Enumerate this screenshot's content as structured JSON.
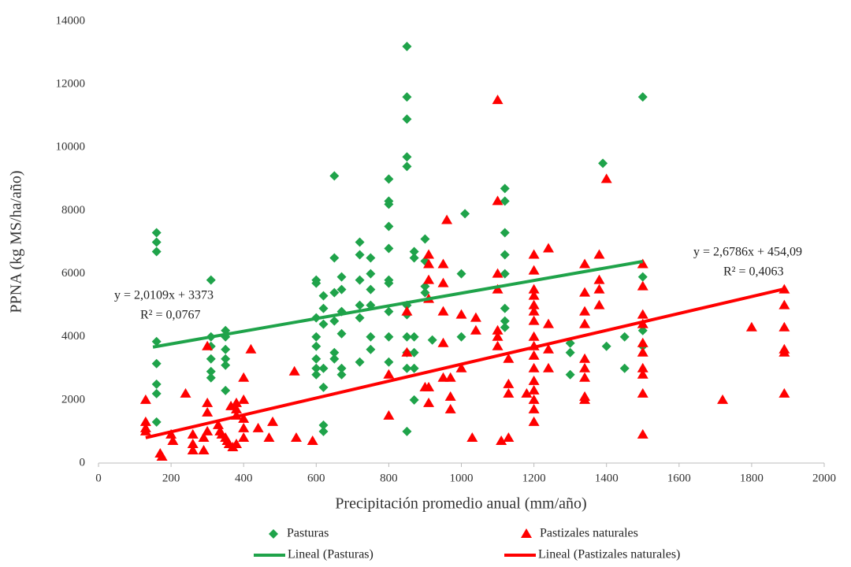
{
  "chart_data": {
    "type": "scatter",
    "x_label": "Precipitación promedio anual (mm/año)",
    "y_label": "PPNA  (kg MS/ha/año)",
    "xlim": [
      0,
      2000
    ],
    "xticks": [
      0,
      200,
      400,
      600,
      800,
      1000,
      1200,
      1400,
      1600,
      1800,
      2000
    ],
    "ylim": [
      0,
      14000
    ],
    "yticks": [
      0,
      2000,
      4000,
      6000,
      8000,
      10000,
      12000,
      14000
    ],
    "legend": "bottom",
    "series": [
      {
        "name": "Pasturas",
        "color": "#1fa34a",
        "marker": "diamond",
        "x": [
          160,
          160,
          160,
          160,
          160,
          160,
          160,
          160,
          310,
          310,
          310,
          310,
          310,
          310,
          350,
          350,
          350,
          350,
          350,
          350,
          600,
          600,
          600,
          600,
          600,
          600,
          600,
          600,
          620,
          620,
          620,
          620,
          620,
          620,
          620,
          650,
          650,
          650,
          650,
          650,
          650,
          670,
          670,
          670,
          670,
          670,
          670,
          720,
          720,
          720,
          720,
          720,
          720,
          750,
          750,
          750,
          750,
          750,
          750,
          800,
          800,
          800,
          800,
          800,
          800,
          800,
          800,
          800,
          800,
          850,
          850,
          850,
          850,
          850,
          850,
          850,
          850,
          850,
          850,
          850,
          870,
          870,
          870,
          870,
          870,
          870,
          900,
          900,
          900,
          900,
          920,
          1000,
          1000,
          1010,
          1120,
          1120,
          1120,
          1120,
          1120,
          1120,
          1120,
          1120,
          1300,
          1300,
          1300,
          1390,
          1400,
          1450,
          1450,
          1500,
          1500,
          1500,
          1500
        ],
        "values": [
          7300,
          7000,
          6700,
          3850,
          3150,
          2500,
          2200,
          1300,
          5800,
          4000,
          3700,
          3300,
          2900,
          2700,
          4200,
          4000,
          3600,
          3300,
          3100,
          2300,
          5800,
          5700,
          4600,
          4000,
          3700,
          3300,
          3000,
          2800,
          5300,
          4900,
          4400,
          3000,
          2400,
          1200,
          1000,
          9100,
          6500,
          5400,
          4500,
          3500,
          3300,
          5900,
          5500,
          4800,
          4100,
          3000,
          2800,
          7000,
          6600,
          5800,
          5000,
          4600,
          3200,
          6500,
          6000,
          5500,
          5000,
          4000,
          3600,
          9000,
          8300,
          8200,
          7500,
          6800,
          5800,
          5700,
          4800,
          4000,
          3200,
          13200,
          11600,
          10900,
          9700,
          9400,
          5000,
          4700,
          4000,
          3500,
          3000,
          1000,
          6700,
          6500,
          4000,
          3500,
          3000,
          2000,
          7100,
          6400,
          5600,
          5400,
          3900,
          6000,
          4000,
          7900,
          8700,
          8300,
          7300,
          6600,
          6000,
          4900,
          4500,
          4300,
          3800,
          3500,
          2800,
          9500,
          3700,
          4000,
          3000,
          11600,
          5900,
          4200,
          3700
        ]
      },
      {
        "name": "Pastizales naturales",
        "color": "#ff0000",
        "marker": "triangle",
        "x": [
          130,
          130,
          130,
          130,
          170,
          175,
          200,
          205,
          240,
          260,
          260,
          260,
          290,
          290,
          300,
          300,
          300,
          300,
          330,
          335,
          340,
          350,
          355,
          360,
          365,
          370,
          380,
          380,
          380,
          380,
          400,
          400,
          400,
          400,
          400,
          420,
          440,
          470,
          480,
          540,
          545,
          590,
          800,
          800,
          850,
          850,
          900,
          910,
          910,
          910,
          910,
          910,
          910,
          950,
          950,
          950,
          950,
          950,
          960,
          970,
          970,
          970,
          1000,
          1000,
          1030,
          1040,
          1040,
          1100,
          1100,
          1100,
          1100,
          1100,
          1100,
          1100,
          1110,
          1130,
          1130,
          1130,
          1130,
          1180,
          1200,
          1200,
          1200,
          1200,
          1200,
          1200,
          1200,
          1200,
          1200,
          1200,
          1200,
          1200,
          1200,
          1200,
          1200,
          1200,
          1240,
          1240,
          1240,
          1240,
          1340,
          1340,
          1340,
          1340,
          1340,
          1340,
          1340,
          1340,
          1340,
          1380,
          1380,
          1380,
          1380,
          1400,
          1500,
          1500,
          1500,
          1500,
          1500,
          1500,
          1500,
          1500,
          1500,
          1500,
          1720,
          1800,
          1890,
          1890,
          1890,
          1890,
          1890,
          1890
        ],
        "values": [
          2000,
          1300,
          1100,
          1000,
          300,
          200,
          900,
          700,
          2200,
          900,
          600,
          400,
          800,
          400,
          3700,
          1900,
          1600,
          1000,
          1200,
          1000,
          900,
          800,
          700,
          600,
          1800,
          500,
          1900,
          1700,
          1500,
          600,
          2700,
          2000,
          1400,
          1100,
          800,
          3600,
          1100,
          800,
          1300,
          2900,
          800,
          700,
          2800,
          1500,
          3500,
          4800,
          2400,
          6600,
          6300,
          5800,
          5200,
          1900,
          2400,
          6300,
          5700,
          4800,
          3800,
          2700,
          7700,
          2700,
          2100,
          1700,
          4700,
          3000,
          800,
          4600,
          4200,
          11500,
          8300,
          6000,
          5500,
          4200,
          4000,
          3700,
          700,
          3300,
          2500,
          2200,
          800,
          2200,
          6600,
          6100,
          5500,
          5300,
          5000,
          4800,
          4500,
          4000,
          3700,
          3400,
          3000,
          2600,
          2300,
          2000,
          1700,
          1300,
          6800,
          4400,
          3600,
          3000,
          6300,
          5400,
          4800,
          4400,
          3300,
          3000,
          2700,
          2100,
          2000,
          6600,
          5800,
          5500,
          5000,
          9000,
          6300,
          5600,
          4700,
          4400,
          3800,
          3500,
          3000,
          2800,
          2200,
          900,
          2000,
          4300,
          5500,
          5000,
          4300,
          3600,
          3500,
          2200
        ]
      },
      {
        "name": "Lineal (Pasturas)",
        "type": "line",
        "color": "#1fa34a",
        "x": [
          150,
          1500
        ],
        "values": [
          3675,
          6389
        ]
      },
      {
        "name": "Lineal (Pastizales naturales)",
        "type": "line",
        "color": "#ff0000",
        "x": [
          130,
          1890
        ],
        "values": [
          802,
          5517
        ]
      }
    ],
    "annotations": [
      "y = 2,0109x + 3373",
      "R² = 0,0767",
      "y = 2,6786x + 454,09",
      "R² = 0,4063"
    ]
  }
}
